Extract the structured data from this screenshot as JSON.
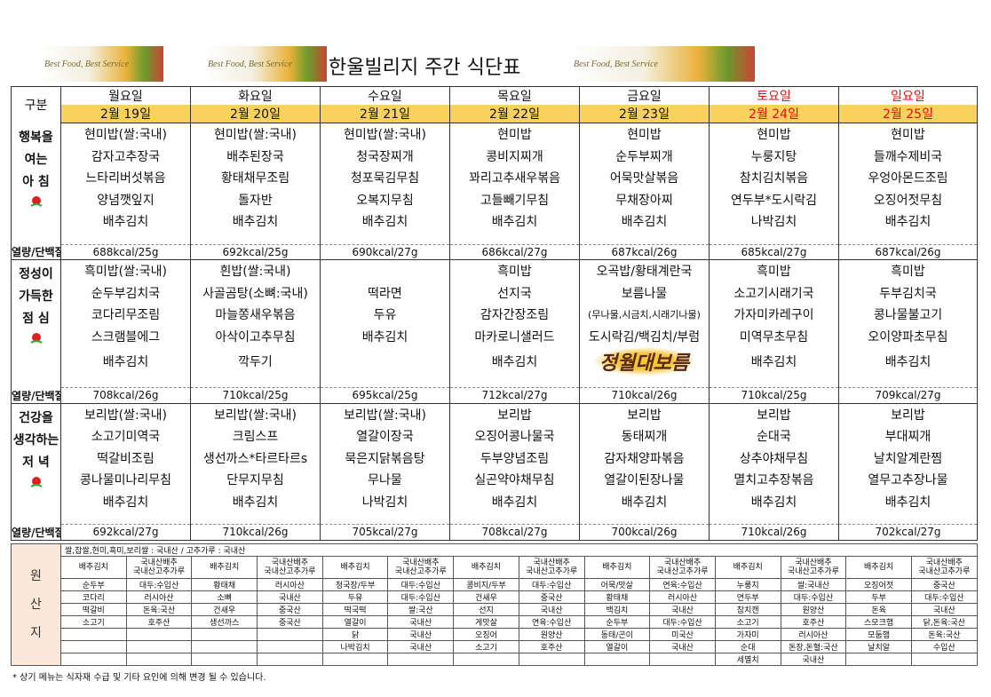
{
  "header": {
    "title": "한울빌리지 주간 식단표",
    "banner": "Best Food, Best Service"
  },
  "table": {
    "corner": "구분",
    "days": [
      "월요일",
      "화요일",
      "수요일",
      "목요일",
      "금요일",
      "토요일",
      "일요일"
    ],
    "dates": [
      "2월 19일",
      "2월 20일",
      "2월 21일",
      "2월 22일",
      "2월 23일",
      "2월 24일",
      "2월 25일"
    ]
  },
  "meals": [
    {
      "label": [
        "행복을",
        "여는",
        "아 침"
      ],
      "kcal_label": "열량/단백질",
      "items": [
        [
          "현미밥(쌀:국내)",
          "감자고추장국",
          "느타리버섯볶음",
          "양념깻잎지",
          "배추김치"
        ],
        [
          "현미밥(쌀:국내)",
          "배추된장국",
          "황태채무조림",
          "돌자반",
          "배추김치"
        ],
        [
          "현미밥(쌀:국내)",
          "청국장찌개",
          "청포묵김무침",
          "오복지무침",
          "배추김치"
        ],
        [
          "현미밥",
          "콩비지찌개",
          "꽈리고추새우볶음",
          "고들빼기무침",
          "배추김치"
        ],
        [
          "현미밥",
          "순두부찌개",
          "어묵맛살볶음",
          "무채장아찌",
          "배추김치"
        ],
        [
          "현미밥",
          "누룽지탕",
          "참치김치볶음",
          "연두부*도시락김",
          "나박김치"
        ],
        [
          "현미밥",
          "들깨수제비국",
          "우엉아몬드조림",
          "오징어젓무침",
          "배추김치"
        ]
      ],
      "kcal": [
        "688kcal/25g",
        "692kcal/25g",
        "690kcal/27g",
        "686kcal/27g",
        "687kcal/26g",
        "685kcal/27g",
        "687kcal/26g"
      ]
    },
    {
      "label": [
        "정성이",
        "가득한",
        "점 심"
      ],
      "kcal_label": "열량/단백질",
      "stamp": "정월대보름",
      "items": [
        [
          "흑미밥(쌀:국내)",
          "순두부김치국",
          "코다리무조림",
          "스크램블에그",
          "배추김치"
        ],
        [
          "흰밥(쌀:국내)",
          "사골곰탕(소뼈:국내)",
          "마늘쫑새우볶음",
          "아삭이고추무침",
          "깍두기"
        ],
        [
          null,
          "떡라면",
          "두유",
          "배추김치",
          null
        ],
        [
          "흑미밥",
          "선지국",
          "감자간장조림",
          "마카로니샐러드",
          "배추김치"
        ],
        [
          "오곡밥/황태계란국",
          "보름나물",
          "(무나물,시금치,시래기나물)",
          "도시락김/백김치/부럼",
          null
        ],
        [
          "흑미밥",
          "소고기시래기국",
          "가자미카레구이",
          "미역무초무침",
          "배추김치"
        ],
        [
          "흑미밥",
          "두부김치국",
          "콩나물불고기",
          "오이양파초무침",
          "배추김치"
        ]
      ],
      "kcal": [
        "708kcal/26g",
        "710kcal/25g",
        "695kcal/25g",
        "712kcal/27g",
        "710kcal/26g",
        "710kcal/25g",
        "709kcal/27g"
      ]
    },
    {
      "label": [
        "건강을",
        "생각하는",
        "저 녁"
      ],
      "kcal_label": "열량/단백질",
      "items": [
        [
          "보리밥(쌀:국내)",
          "소고기미역국",
          "떡갈비조림",
          "콩나물미나리무침",
          "배추김치"
        ],
        [
          "보리밥(쌀:국내)",
          "크림스프",
          "생선까스*타르타르s",
          "단무지무침",
          "배추김치"
        ],
        [
          "보리밥(쌀:국내)",
          "열갈이장국",
          "묵은지닭볶음탕",
          "무나물",
          "나박김치"
        ],
        [
          "보리밥",
          "오징어콩나물국",
          "두부양념조림",
          "실곤약야채무침",
          "배추김치"
        ],
        [
          "보리밥",
          "동태찌개",
          "감자채양파볶음",
          "열갈이된장나물",
          "배추김치"
        ],
        [
          "보리밥",
          "순대국",
          "상추야채무침",
          "멸치고추장볶음",
          "배추김치"
        ],
        [
          "보리밥",
          "부대찌개",
          "날치알계란찜",
          "열무고추장나물",
          "배추김치"
        ]
      ],
      "kcal": [
        "692kcal/27g",
        "710kcal/26g",
        "705kcal/27g",
        "708kcal/27g",
        "700kcal/26g",
        "710kcal/26g",
        "702kcal/27g"
      ]
    }
  ],
  "origin": {
    "label": [
      "원",
      "산",
      "지"
    ],
    "note": "쌀,찹쌀,현미,흑미,보리쌀 : 국내산 / 고추가루 : 국내산",
    "header": {
      "item": "배추김치",
      "origin": [
        "국내산배추",
        "국내산고추가루"
      ]
    },
    "columns": [
      [
        [
          "순두부",
          "대두:수입산"
        ],
        [
          "코다리",
          "러시아산"
        ],
        [
          "떡갈비",
          "돈육:국산"
        ],
        [
          "소고기",
          "호주산"
        ]
      ],
      [
        [
          "황태채",
          "러시아산"
        ],
        [
          "소뼈",
          "국내산"
        ],
        [
          "건새우",
          "중국산"
        ],
        [
          "생선까스",
          "중국산"
        ]
      ],
      [
        [
          "청국장/두부",
          "대두:수입산"
        ],
        [
          "두유",
          "대두:수입산"
        ],
        [
          "떡국떡",
          "쌀:국산"
        ],
        [
          "열갈이",
          "국내산"
        ],
        [
          "닭",
          "국내산"
        ],
        [
          "나박김치",
          "국내산"
        ]
      ],
      [
        [
          "콩비지/두부",
          "대두:수입산"
        ],
        [
          "건새우",
          "중국산"
        ],
        [
          "선지",
          "국내산"
        ],
        [
          "게맛살",
          "연육:수입산"
        ],
        [
          "오징어",
          "원양산"
        ],
        [
          "소고기",
          "호주산"
        ]
      ],
      [
        [
          "어묵/맛살",
          "연육:수입산"
        ],
        [
          "황태채",
          "러시아산"
        ],
        [
          "백김치",
          "국내산"
        ],
        [
          "순두부",
          "대두:수입산"
        ],
        [
          "동태/곤이",
          "미국산"
        ],
        [
          "열갈이",
          "국내산"
        ]
      ],
      [
        [
          "누룽지",
          "쌀:국내산"
        ],
        [
          "연두부",
          "대두:수입산"
        ],
        [
          "참치캔",
          "원양산"
        ],
        [
          "소고기",
          "호주산"
        ],
        [
          "가자미",
          "러시아산"
        ],
        [
          "순대",
          "돈장,돈혈:국산"
        ],
        [
          "세멸치",
          "국내산"
        ]
      ],
      [
        [
          "오징어젓",
          "중국산"
        ],
        [
          "두부",
          "대두:수입산"
        ],
        [
          "돈육",
          "국내산"
        ],
        [
          "스모크햄",
          "닭,돈육:국산"
        ],
        [
          "모둠햄",
          "돈육:국산"
        ],
        [
          "날치알",
          "수입산"
        ]
      ]
    ]
  },
  "footer": "* 상기 메뉴는 식자재 수급 및 기타 요인에 의해 변경 될 수 있습니다."
}
